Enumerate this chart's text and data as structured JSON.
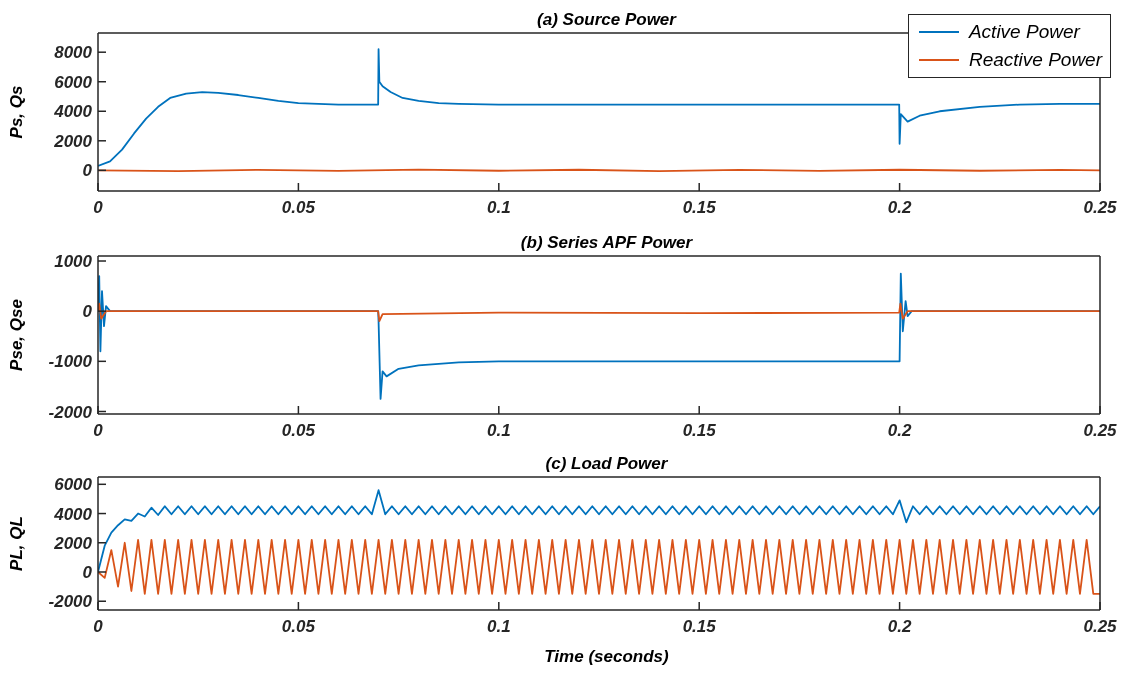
{
  "chart_data": [
    {
      "type": "line",
      "title": "(a) Source Power",
      "ylabel": "Ps, Qs",
      "xlim": [
        0,
        0.25
      ],
      "xticks": [
        0,
        0.05,
        0.1,
        0.15,
        0.2,
        0.25
      ],
      "ylim": [
        -1400,
        9300
      ],
      "yticks": [
        0,
        2000,
        4000,
        6000,
        8000
      ],
      "legend": "top right",
      "series": [
        {
          "name": "Active Power",
          "color": "#0072bd",
          "x": [
            0,
            0.003,
            0.006,
            0.009,
            0.012,
            0.015,
            0.018,
            0.022,
            0.026,
            0.03,
            0.035,
            0.04,
            0.045,
            0.05,
            0.055,
            0.06,
            0.065,
            0.0699,
            0.07,
            0.0702,
            0.071,
            0.073,
            0.076,
            0.08,
            0.085,
            0.09,
            0.1,
            0.12,
            0.15,
            0.18,
            0.1999,
            0.2,
            0.2003,
            0.202,
            0.205,
            0.21,
            0.22,
            0.23,
            0.24,
            0.25
          ],
          "values": [
            300,
            600,
            1400,
            2500,
            3500,
            4300,
            4900,
            5200,
            5300,
            5250,
            5100,
            4900,
            4700,
            4550,
            4500,
            4450,
            4450,
            4450,
            8200,
            6000,
            5700,
            5300,
            4900,
            4700,
            4550,
            4500,
            4450,
            4450,
            4450,
            4450,
            4450,
            1800,
            3800,
            3300,
            3700,
            4000,
            4300,
            4450,
            4500,
            4500
          ]
        },
        {
          "name": "Reactive Power",
          "color": "#d95319",
          "x": [
            0,
            0.02,
            0.04,
            0.06,
            0.08,
            0.1,
            0.12,
            0.14,
            0.16,
            0.18,
            0.2,
            0.22,
            0.24,
            0.25
          ],
          "values": [
            0,
            -50,
            30,
            -40,
            50,
            -30,
            40,
            -50,
            30,
            -40,
            40,
            -30,
            30,
            0
          ]
        }
      ]
    },
    {
      "type": "line",
      "title": "(b) Series APF Power",
      "ylabel": "Pse, Qse",
      "xlim": [
        0,
        0.25
      ],
      "xticks": [
        0,
        0.05,
        0.1,
        0.15,
        0.2,
        0.25
      ],
      "ylim": [
        -2050,
        1100
      ],
      "yticks": [
        -2000,
        -1000,
        0,
        1000
      ],
      "series": [
        {
          "color": "#0072bd",
          "x": [
            0,
            0.0003,
            0.0006,
            0.001,
            0.0015,
            0.002,
            0.003,
            0.0699,
            0.07,
            0.0705,
            0.071,
            0.072,
            0.075,
            0.08,
            0.09,
            0.1,
            0.15,
            0.1999,
            0.2,
            0.2003,
            0.2008,
            0.2015,
            0.202,
            0.203,
            0.25
          ],
          "values": [
            0,
            700,
            -800,
            400,
            -300,
            100,
            0,
            0,
            -200,
            -1750,
            -1200,
            -1300,
            -1150,
            -1080,
            -1020,
            -1000,
            -1000,
            -1000,
            -1000,
            750,
            -400,
            200,
            -100,
            0,
            0
          ]
        },
        {
          "color": "#d95319",
          "x": [
            0,
            0.0003,
            0.0008,
            0.002,
            0.0699,
            0.0702,
            0.071,
            0.1,
            0.15,
            0.1999,
            0.2002,
            0.2008,
            0.202,
            0.25
          ],
          "values": [
            0,
            150,
            -150,
            0,
            0,
            -200,
            -60,
            -30,
            -40,
            -30,
            150,
            -150,
            0,
            0
          ]
        }
      ]
    },
    {
      "type": "line",
      "title": "(c) Load Power",
      "ylabel": "PL, QL",
      "xlabel": "Time (seconds)",
      "xlim": [
        0,
        0.25
      ],
      "xticks": [
        0,
        0.05,
        0.1,
        0.15,
        0.2,
        0.25
      ],
      "ylim": [
        -2600,
        6500
      ],
      "yticks": [
        -2000,
        0,
        2000,
        4000,
        6000
      ],
      "series": [
        {
          "color": "#0072bd",
          "x": [
            0,
            0.00167,
            0.00333,
            0.005,
            0.00667,
            0.00833,
            0.01,
            0.01167,
            0.01333,
            0.015,
            0.01667,
            0.01833,
            0.02,
            0.02167,
            0.02333,
            0.025,
            0.02667,
            0.02833,
            0.03,
            0.03167,
            0.03333,
            0.035,
            0.03667,
            0.03833,
            0.04,
            0.04167,
            0.04333,
            0.045,
            0.04667,
            0.04833,
            0.05,
            0.05167,
            0.05333,
            0.055,
            0.05667,
            0.05833,
            0.06,
            0.06167,
            0.06333,
            0.065,
            0.06667,
            0.06833,
            0.07,
            0.07167,
            0.07333,
            0.075,
            0.07667,
            0.07833,
            0.08,
            0.08167,
            0.08333,
            0.085,
            0.08667,
            0.08833,
            0.09,
            0.09167,
            0.09333,
            0.095,
            0.09667,
            0.09833,
            0.1,
            0.10167,
            0.10333,
            0.105,
            0.10667,
            0.10833,
            0.11,
            0.11167,
            0.11333,
            0.115,
            0.11667,
            0.11833,
            0.12,
            0.12167,
            0.12333,
            0.125,
            0.12667,
            0.12833,
            0.13,
            0.13167,
            0.13333,
            0.135,
            0.13667,
            0.13833,
            0.14,
            0.14167,
            0.14333,
            0.145,
            0.14667,
            0.14833,
            0.15,
            0.15167,
            0.15333,
            0.155,
            0.15667,
            0.15833,
            0.16,
            0.16167,
            0.16333,
            0.165,
            0.16667,
            0.16833,
            0.17,
            0.17167,
            0.17333,
            0.175,
            0.17667,
            0.17833,
            0.18,
            0.18167,
            0.18333,
            0.185,
            0.18667,
            0.18833,
            0.19,
            0.19167,
            0.19333,
            0.195,
            0.19667,
            0.19833,
            0.2,
            0.20167,
            0.20333,
            0.205,
            0.20667,
            0.20833,
            0.21,
            0.21167,
            0.21333,
            0.215,
            0.21667,
            0.21833,
            0.22,
            0.22167,
            0.22333,
            0.225,
            0.22667,
            0.22833,
            0.23,
            0.23167,
            0.23333,
            0.235,
            0.23667,
            0.23833,
            0.24,
            0.24167,
            0.24333,
            0.245,
            0.24667,
            0.24833,
            0.25
          ],
          "values": [
            0,
            1800,
            2700,
            3200,
            3600,
            3500,
            4000,
            3800,
            4400,
            3900,
            4500,
            3950,
            4500,
            3950,
            4500,
            3950,
            4500,
            3950,
            4500,
            3950,
            4500,
            3950,
            4500,
            3950,
            4500,
            3950,
            4500,
            3950,
            4500,
            3950,
            4500,
            3950,
            4500,
            3950,
            4500,
            3950,
            4500,
            3950,
            4500,
            3950,
            4500,
            3950,
            5600,
            3950,
            4500,
            3950,
            4500,
            3950,
            4500,
            3950,
            4500,
            3950,
            4500,
            3950,
            4500,
            3950,
            4500,
            3950,
            4500,
            3950,
            4500,
            3950,
            4500,
            3950,
            4500,
            3950,
            4500,
            3950,
            4500,
            3950,
            4500,
            3950,
            4500,
            3950,
            4500,
            3950,
            4500,
            3950,
            4500,
            3950,
            4500,
            3950,
            4500,
            3950,
            4500,
            3950,
            4500,
            3950,
            4500,
            3950,
            4500,
            3950,
            4500,
            3950,
            4500,
            3950,
            4500,
            3950,
            4500,
            3950,
            4500,
            3950,
            4500,
            3950,
            4500,
            3950,
            4500,
            3950,
            4500,
            3950,
            4500,
            3950,
            4500,
            3950,
            4500,
            3950,
            4500,
            3950,
            4500,
            3950,
            4900,
            3400,
            4500,
            3950,
            4500,
            3950,
            4500,
            3950,
            4500,
            3950,
            4500,
            3950,
            4500,
            3950,
            4500,
            3950,
            4500,
            3950,
            4500,
            3950,
            4500,
            3950,
            4500,
            3950,
            4500,
            3950,
            4500,
            3950,
            4500,
            3950,
            4500
          ]
        },
        {
          "color": "#d95319",
          "x": [
            0,
            0.00167,
            0.00333,
            0.005,
            0.00667,
            0.00833,
            0.01,
            0.01167,
            0.01333,
            0.015,
            0.01667,
            0.01833,
            0.02,
            0.02167,
            0.02333,
            0.025,
            0.02667,
            0.02833,
            0.03,
            0.03167,
            0.03333,
            0.035,
            0.03667,
            0.03833,
            0.04,
            0.04167,
            0.04333,
            0.045,
            0.04667,
            0.04833,
            0.05,
            0.05167,
            0.05333,
            0.055,
            0.05667,
            0.05833,
            0.06,
            0.06167,
            0.06333,
            0.065,
            0.06667,
            0.06833,
            0.07,
            0.07167,
            0.07333,
            0.075,
            0.07667,
            0.07833,
            0.08,
            0.08167,
            0.08333,
            0.085,
            0.08667,
            0.08833,
            0.09,
            0.09167,
            0.09333,
            0.095,
            0.09667,
            0.09833,
            0.1,
            0.10167,
            0.10333,
            0.105,
            0.10667,
            0.10833,
            0.11,
            0.11167,
            0.11333,
            0.115,
            0.11667,
            0.11833,
            0.12,
            0.12167,
            0.12333,
            0.125,
            0.12667,
            0.12833,
            0.13,
            0.13167,
            0.13333,
            0.135,
            0.13667,
            0.13833,
            0.14,
            0.14167,
            0.14333,
            0.145,
            0.14667,
            0.14833,
            0.15,
            0.15167,
            0.15333,
            0.155,
            0.15667,
            0.15833,
            0.16,
            0.16167,
            0.16333,
            0.165,
            0.16667,
            0.16833,
            0.17,
            0.17167,
            0.17333,
            0.175,
            0.17667,
            0.17833,
            0.18,
            0.18167,
            0.18333,
            0.185,
            0.18667,
            0.18833,
            0.19,
            0.19167,
            0.19333,
            0.195,
            0.19667,
            0.19833,
            0.2,
            0.20167,
            0.20333,
            0.205,
            0.20667,
            0.20833,
            0.21,
            0.21167,
            0.21333,
            0.215,
            0.21667,
            0.21833,
            0.22,
            0.22167,
            0.22333,
            0.225,
            0.22667,
            0.22833,
            0.23,
            0.23167,
            0.23333,
            0.235,
            0.23667,
            0.23833,
            0.24,
            0.24167,
            0.24333,
            0.245,
            0.24667,
            0.24833,
            0.25
          ],
          "values": [
            0,
            -400,
            1500,
            -1000,
            2000,
            -1300,
            2200,
            -1500,
            2200,
            -1500,
            2200,
            -1500,
            2200,
            -1500,
            2200,
            -1500,
            2200,
            -1500,
            2200,
            -1500,
            2200,
            -1500,
            2200,
            -1500,
            2200,
            -1500,
            2200,
            -1500,
            2200,
            -1500,
            2200,
            -1500,
            2200,
            -1500,
            2200,
            -1500,
            2200,
            -1500,
            2200,
            -1500,
            2200,
            -1500,
            2200,
            -1500,
            2200,
            -1500,
            2200,
            -1500,
            2200,
            -1500,
            2200,
            -1500,
            2200,
            -1500,
            2200,
            -1500,
            2200,
            -1500,
            2200,
            -1500,
            2200,
            -1500,
            2200,
            -1500,
            2200,
            -1500,
            2200,
            -1500,
            2200,
            -1500,
            2200,
            -1500,
            2200,
            -1500,
            2200,
            -1500,
            2200,
            -1500,
            2200,
            -1500,
            2200,
            -1500,
            2200,
            -1500,
            2200,
            -1500,
            2200,
            -1500,
            2200,
            -1500,
            2200,
            -1500,
            2200,
            -1500,
            2200,
            -1500,
            2200,
            -1500,
            2200,
            -1500,
            2200,
            -1500,
            2200,
            -1500,
            2200,
            -1500,
            2200,
            -1500,
            2200,
            -1500,
            2200,
            -1500,
            2200,
            -1500,
            2200,
            -1500,
            2200,
            -1500,
            2200,
            -1500,
            2200,
            -1500,
            2200,
            -1500,
            2200,
            -1500,
            2200,
            -1500,
            2200,
            -1500,
            2200,
            -1500,
            2200,
            -1500,
            2200,
            -1500,
            2200,
            -1500,
            2200,
            -1500,
            2200,
            -1500,
            2200,
            -1500,
            2200,
            -1500,
            2200,
            -1500,
            2200,
            -1500,
            -1500
          ]
        }
      ]
    }
  ]
}
